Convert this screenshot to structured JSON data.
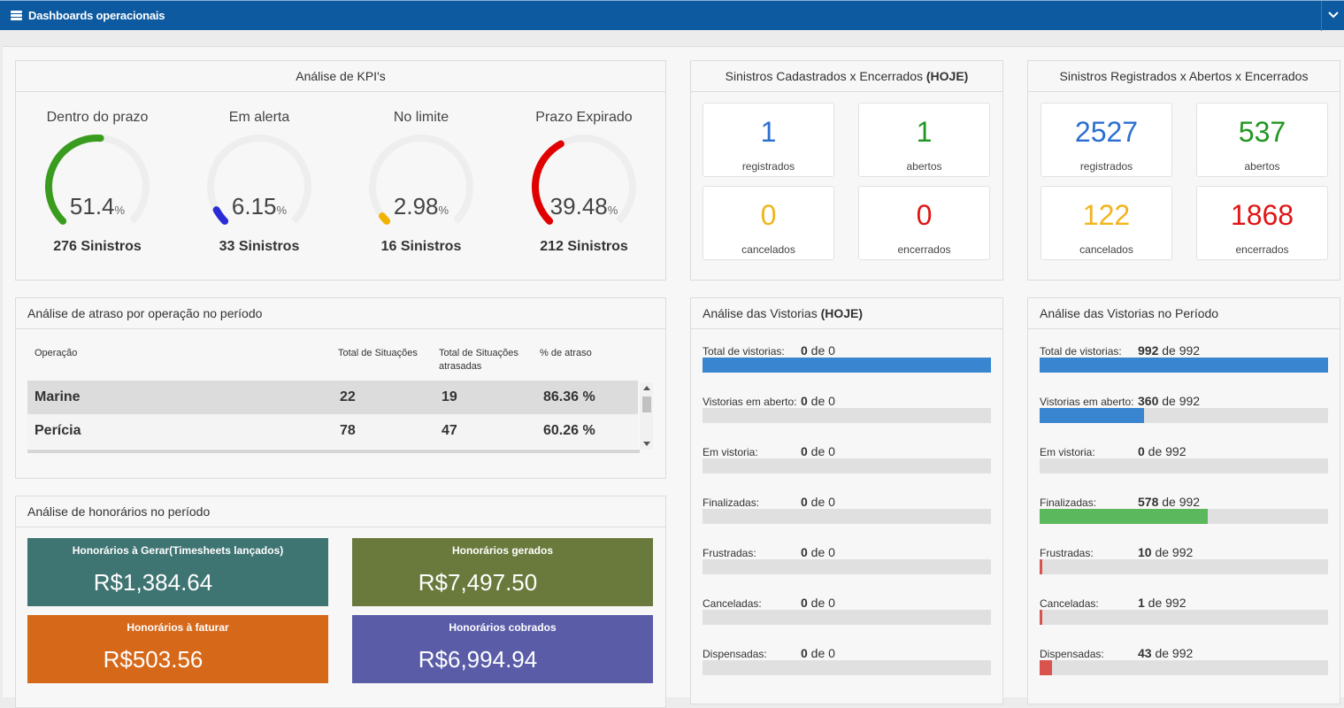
{
  "header": {
    "title": "Dashboards operacionais"
  },
  "kpi": {
    "title": "Análise de KPI's",
    "items": [
      {
        "label": "Dentro do prazo",
        "value": "51.4",
        "unit": "%",
        "count": "276 Sinistros",
        "pct": 0.514,
        "color": "#3a9c1f"
      },
      {
        "label": "Em alerta",
        "value": "6.15",
        "unit": "%",
        "count": "33 Sinistros",
        "pct": 0.0615,
        "color": "#2b2bd6"
      },
      {
        "label": "No limite",
        "value": "2.98",
        "unit": "%",
        "count": "16 Sinistros",
        "pct": 0.0298,
        "color": "#f0b400"
      },
      {
        "label": "Prazo Expirado",
        "value": "39.48",
        "unit": "%",
        "count": "212 Sinistros",
        "pct": 0.3948,
        "color": "#e00000"
      }
    ]
  },
  "today_claims": {
    "title_prefix": "Sinistros Cadastrados x Encerrados ",
    "title_bold": "(HOJE)",
    "stats": [
      {
        "num": "1",
        "label": "registrados",
        "color": "#2a6fd1"
      },
      {
        "num": "1",
        "label": "abertos",
        "color": "#229622"
      },
      {
        "num": "0",
        "label": "cancelados",
        "color": "#f0b41c"
      },
      {
        "num": "0",
        "label": "encerrados",
        "color": "#e01515"
      }
    ]
  },
  "all_claims": {
    "title": "Sinistros Registrados x Abertos x Encerrados",
    "stats": [
      {
        "num": "2527",
        "label": "registrados",
        "color": "#2a6fd1"
      },
      {
        "num": "537",
        "label": "abertos",
        "color": "#229622"
      },
      {
        "num": "122",
        "label": "cancelados",
        "color": "#f0b41c"
      },
      {
        "num": "1868",
        "label": "encerrados",
        "color": "#e01515"
      }
    ]
  },
  "delay": {
    "title": "Análise de atraso por operação no período",
    "headers": [
      "Operação",
      "Total de Situações",
      "Total de Situações atrasadas",
      "% de atraso"
    ],
    "rows": [
      {
        "op": "Marine",
        "total": "22",
        "late": "19",
        "pct": "86.36 %"
      },
      {
        "op": "Perícia",
        "total": "78",
        "late": "47",
        "pct": "60.26 %"
      }
    ]
  },
  "fees": {
    "title": "Análise de honorários no período",
    "tiles": [
      {
        "title": "Honorários à Gerar(Timesheets lançados)",
        "value": "R$1,384.64",
        "color": "#3e7472"
      },
      {
        "title": "Honorários gerados",
        "value": "R$7,497.50",
        "color": "#6a7a3c"
      },
      {
        "title": "Honorários à faturar",
        "value": "R$503.56",
        "color": "#d6681a"
      },
      {
        "title": "Honorários cobrados",
        "value": "R$6,994.94",
        "color": "#5a5ca8"
      }
    ]
  },
  "inspections_today": {
    "title_prefix": "Análise das Vistorias ",
    "title_bold": "(HOJE)",
    "rows": [
      {
        "label": "Total de vistorias:",
        "value": "0",
        "of": " de 0",
        "frac": 1.0,
        "color": "#3a85d0"
      },
      {
        "label": "Vistorias em aberto:",
        "value": "0",
        "of": " de 0",
        "frac": 0,
        "color": "#3a85d0"
      },
      {
        "label": "Em vistoria:",
        "value": "0",
        "of": " de 0",
        "frac": 0,
        "color": "#3a85d0"
      },
      {
        "label": "Finalizadas:",
        "value": "0",
        "of": " de 0",
        "frac": 0,
        "color": "#5cb85c"
      },
      {
        "label": "Frustradas:",
        "value": "0",
        "of": " de 0",
        "frac": 0,
        "color": "#d9534f"
      },
      {
        "label": "Canceladas:",
        "value": "0",
        "of": " de 0",
        "frac": 0,
        "color": "#d9534f"
      },
      {
        "label": "Dispensadas:",
        "value": "0",
        "of": " de 0",
        "frac": 0,
        "color": "#d9534f"
      }
    ]
  },
  "inspections_period": {
    "title": "Análise das Vistorias no Período",
    "rows": [
      {
        "label": "Total de vistorias:",
        "value": "992",
        "of": " de 992",
        "frac": 1.0,
        "color": "#3a85d0"
      },
      {
        "label": "Vistorias em aberto:",
        "value": "360",
        "of": " de 992",
        "frac": 0.3629,
        "color": "#3a85d0"
      },
      {
        "label": "Em vistoria:",
        "value": "0",
        "of": " de 992",
        "frac": 0,
        "color": "#3a85d0"
      },
      {
        "label": "Finalizadas:",
        "value": "578",
        "of": " de 992",
        "frac": 0.5827,
        "color": "#5cb85c"
      },
      {
        "label": "Frustradas:",
        "value": "10",
        "of": " de 992",
        "frac": 0.0101,
        "color": "#d9534f"
      },
      {
        "label": "Canceladas:",
        "value": "1",
        "of": " de 992",
        "frac": 0.001,
        "color": "#d9534f"
      },
      {
        "label": "Dispensadas:",
        "value": "43",
        "of": " de 992",
        "frac": 0.0433,
        "color": "#d9534f"
      }
    ]
  }
}
